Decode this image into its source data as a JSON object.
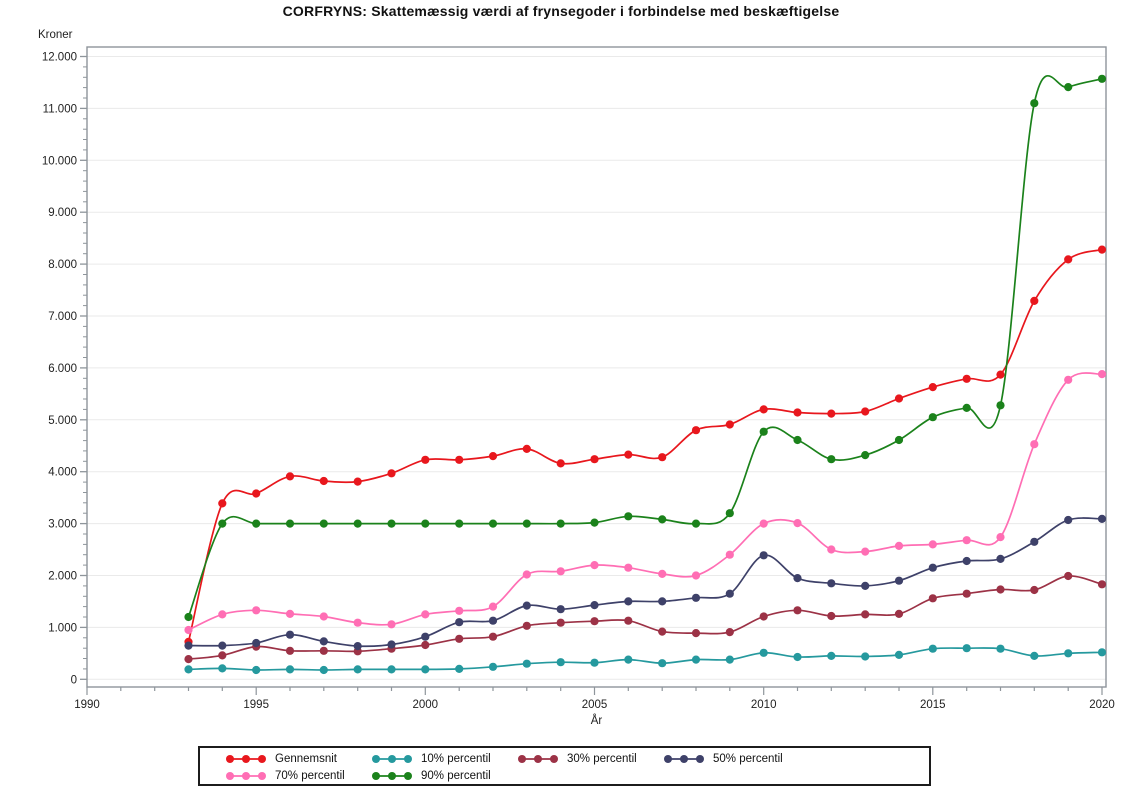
{
  "title": "CORFRYNS: Skattemæssig værdi af frynsegoder i forbindelse med beskæftigelse",
  "chart_data": {
    "type": "line",
    "title": "CORFRYNS: Skattemæssig værdi af frynsegoder i forbindelse med beskæftigelse",
    "xlabel": "År",
    "ylabel": "Kroner",
    "xlim": [
      1990,
      2020
    ],
    "ylim": [
      0,
      12000
    ],
    "grid": "horizontal-major",
    "legend_position": "bottom",
    "x_tick_years": [
      1990,
      1995,
      2000,
      2005,
      2010,
      2015,
      2020
    ],
    "x_minor_step": 1,
    "y_tick_labels": [
      "0",
      "1.000",
      "2.000",
      "3.000",
      "4.000",
      "5.000",
      "6.000",
      "7.000",
      "8.000",
      "9.000",
      "10.000",
      "11.000",
      "12.000"
    ],
    "y_tick_values": [
      0,
      1000,
      2000,
      3000,
      4000,
      5000,
      6000,
      7000,
      8000,
      9000,
      10000,
      11000,
      12000
    ],
    "y_minor_step": 200,
    "x": [
      1993,
      1994,
      1995,
      1996,
      1997,
      1998,
      1999,
      2000,
      2001,
      2002,
      2003,
      2004,
      2005,
      2006,
      2007,
      2008,
      2009,
      2010,
      2011,
      2012,
      2013,
      2014,
      2015,
      2016,
      2017,
      2018,
      2019,
      2020
    ],
    "series": [
      {
        "name": "Gennemsnit",
        "slug": "gennemsnit",
        "color": "#e8171d",
        "values": [
          720,
          3390,
          3580,
          3910,
          3820,
          3810,
          3970,
          4230,
          4230,
          4300,
          4440,
          4160,
          4240,
          4330,
          4280,
          4800,
          4910,
          5200,
          5140,
          5120,
          5160,
          5410,
          5630,
          5790,
          5870,
          7290,
          8090,
          8280
        ]
      },
      {
        "name": "10% percentil",
        "slug": "p10",
        "color": "#25999e",
        "values": [
          190,
          210,
          180,
          190,
          180,
          190,
          190,
          190,
          200,
          240,
          300,
          330,
          320,
          380,
          310,
          380,
          380,
          510,
          430,
          450,
          440,
          470,
          590,
          600,
          590,
          450,
          500,
          520
        ]
      },
      {
        "name": "30% percentil",
        "slug": "p30",
        "color": "#9c3246",
        "values": [
          390,
          460,
          630,
          550,
          550,
          540,
          590,
          660,
          780,
          820,
          1030,
          1090,
          1120,
          1130,
          920,
          890,
          910,
          1210,
          1330,
          1220,
          1250,
          1260,
          1560,
          1650,
          1730,
          1720,
          1990,
          1830
        ]
      },
      {
        "name": "50% percentil",
        "slug": "p50",
        "color": "#3e4169",
        "values": [
          650,
          650,
          700,
          860,
          730,
          640,
          670,
          820,
          1100,
          1130,
          1420,
          1350,
          1430,
          1500,
          1500,
          1570,
          1650,
          2390,
          1950,
          1850,
          1800,
          1900,
          2150,
          2280,
          2320,
          2650,
          3070,
          3090
        ]
      },
      {
        "name": "70% percentil",
        "slug": "p70",
        "color": "#ff6eb4",
        "values": [
          950,
          1250,
          1330,
          1260,
          1210,
          1090,
          1060,
          1250,
          1320,
          1400,
          2020,
          2080,
          2200,
          2150,
          2030,
          2000,
          2400,
          3000,
          3010,
          2500,
          2460,
          2570,
          2600,
          2680,
          2740,
          4530,
          5770,
          5880
        ]
      },
      {
        "name": "90% percentil",
        "slug": "p90",
        "color": "#1b821b",
        "values": [
          1200,
          3000,
          3000,
          3000,
          3000,
          3000,
          3000,
          3000,
          3000,
          3000,
          3000,
          3000,
          3020,
          3140,
          3080,
          3000,
          3200,
          4770,
          4610,
          4240,
          4320,
          4610,
          5050,
          5230,
          5280,
          11100,
          11410,
          11570
        ]
      }
    ],
    "colors": {
      "grid": "#eaeaea",
      "frame": "#8e959b",
      "tick_text": "#222222",
      "legend_border": "#1c1c1c"
    }
  }
}
